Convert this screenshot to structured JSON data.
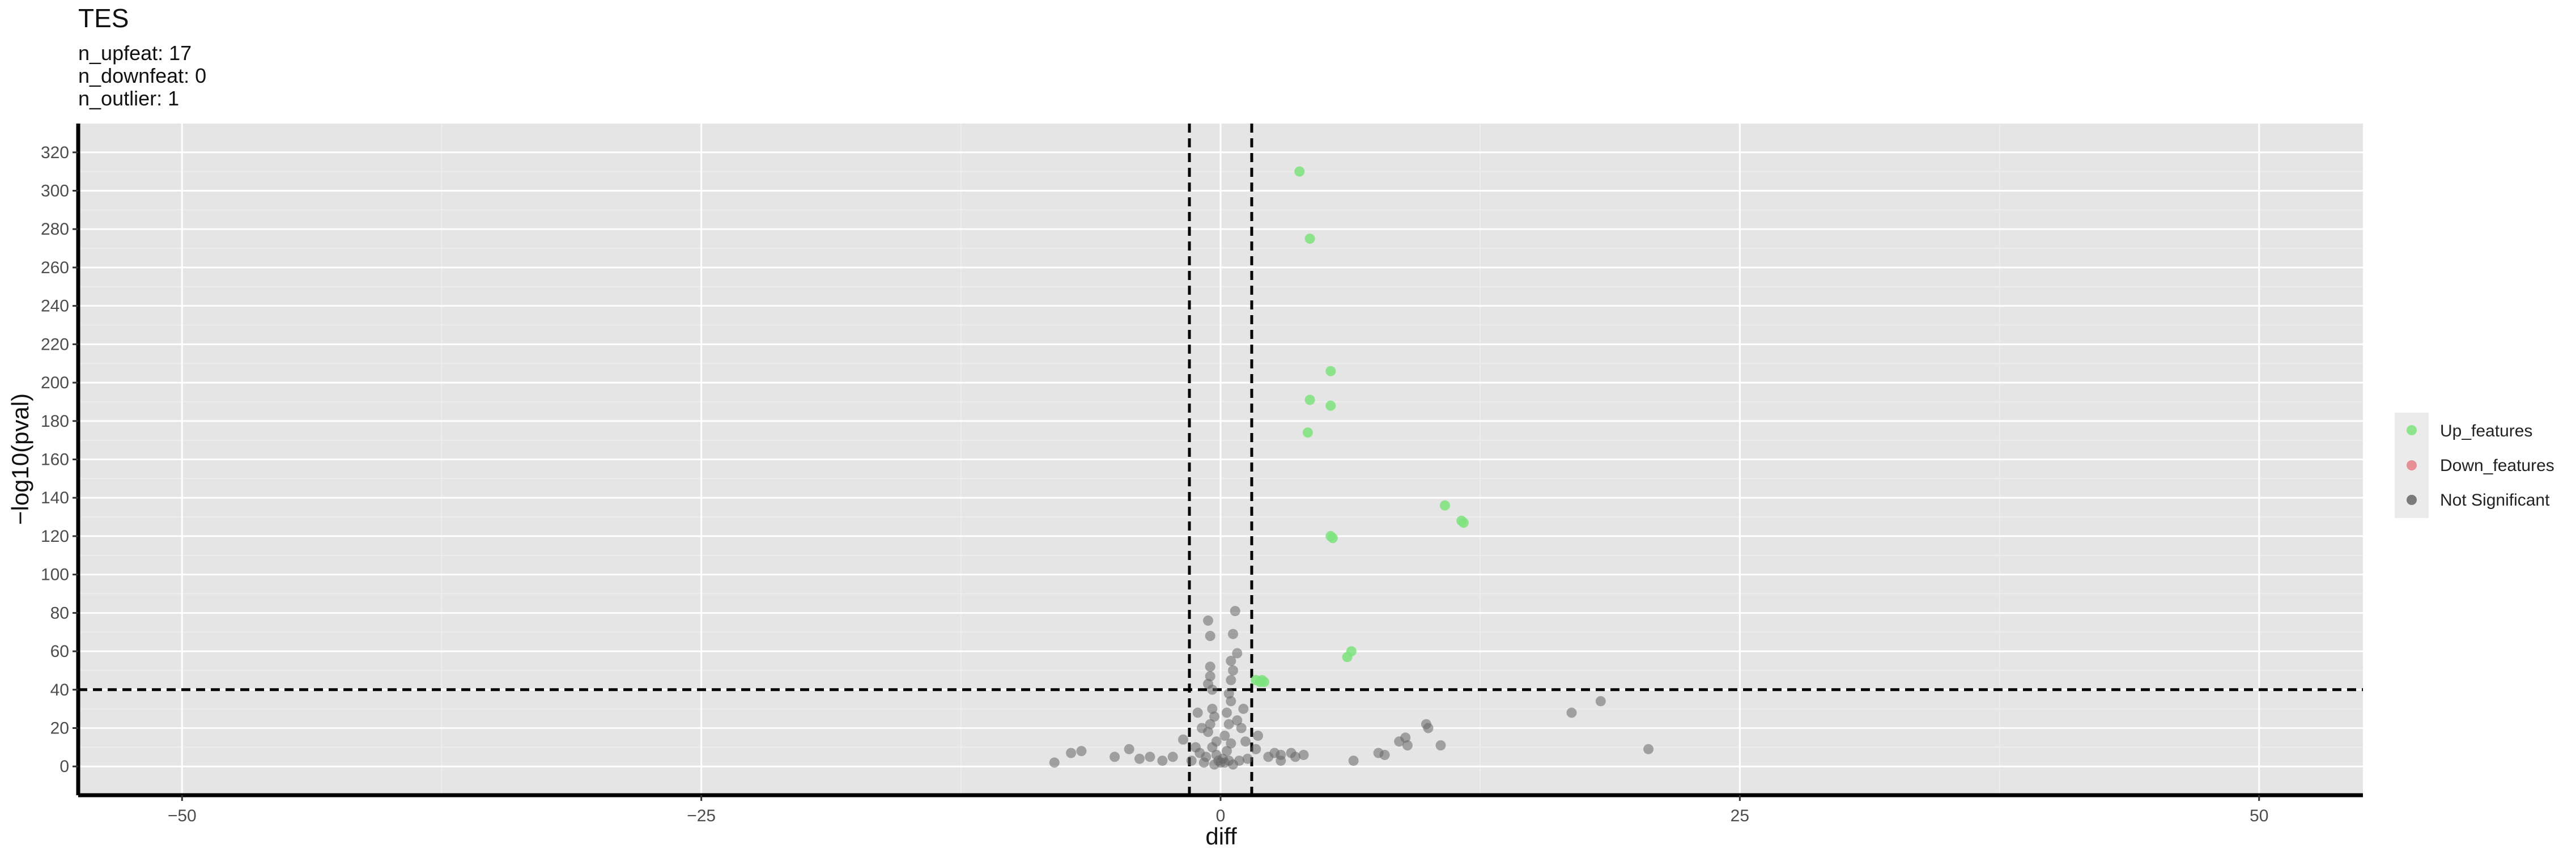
{
  "colors": {
    "panel": "#e5e5e5",
    "grid_major": "#ffffff",
    "grid_minor": "#ededed",
    "up": "#7ce37c",
    "down": "#e57f86",
    "ns": "#666666"
  },
  "chart_data": {
    "type": "scatter",
    "title": "TES",
    "subtitle_lines": [
      "n_upfeat: 17",
      "n_downfeat: 0",
      "n_outlier: 1"
    ],
    "xlabel": "diff",
    "ylabel": "−log10(pval)",
    "xlim": [
      -55,
      55
    ],
    "ylim": [
      -15,
      335
    ],
    "xticks": [
      -50,
      -25,
      0,
      25,
      50
    ],
    "xtick_labels": [
      "−50",
      "−25",
      "0",
      "25",
      "50"
    ],
    "yticks": [
      0,
      20,
      40,
      60,
      80,
      100,
      120,
      140,
      160,
      180,
      200,
      220,
      240,
      260,
      280,
      300,
      320
    ],
    "ytick_labels": [
      "0",
      "20",
      "40",
      "60",
      "80",
      "100",
      "120",
      "140",
      "160",
      "180",
      "200",
      "220",
      "240",
      "260",
      "280",
      "300",
      "320"
    ],
    "grid": true,
    "thresholds": {
      "x": [
        -1.5,
        1.5
      ],
      "y": [
        40
      ]
    },
    "legend": {
      "position": "right",
      "entries": [
        {
          "label": "Up_features",
          "color": "#7ce37c"
        },
        {
          "label": "Down_features",
          "color": "#e57f86"
        },
        {
          "label": "Not Significant",
          "color": "#666666"
        }
      ]
    },
    "series": [
      {
        "name": "Up_features",
        "color": "#7ce37c",
        "points": [
          [
            3.8,
            310
          ],
          [
            4.3,
            275
          ],
          [
            5.3,
            206
          ],
          [
            4.3,
            191
          ],
          [
            5.3,
            188
          ],
          [
            4.2,
            174
          ],
          [
            10.8,
            136
          ],
          [
            11.6,
            128
          ],
          [
            11.7,
            127
          ],
          [
            5.3,
            120
          ],
          [
            5.4,
            119
          ],
          [
            6.3,
            60
          ],
          [
            6.1,
            57
          ],
          [
            1.7,
            45
          ],
          [
            2.0,
            45
          ],
          [
            1.9,
            44
          ],
          [
            2.1,
            44
          ]
        ]
      },
      {
        "name": "Down_features",
        "color": "#e57f86",
        "points": []
      },
      {
        "name": "Not Significant",
        "color": "#666666",
        "points": [
          [
            -0.6,
            76
          ],
          [
            -0.5,
            68
          ],
          [
            0.7,
            81
          ],
          [
            0.6,
            69
          ],
          [
            0.8,
            59
          ],
          [
            0.5,
            55
          ],
          [
            0.6,
            50
          ],
          [
            -0.5,
            52
          ],
          [
            -0.5,
            47
          ],
          [
            -0.6,
            43
          ],
          [
            -0.4,
            40
          ],
          [
            0.5,
            45
          ],
          [
            0.4,
            38
          ],
          [
            0.5,
            34
          ],
          [
            -0.4,
            30
          ],
          [
            -0.3,
            26
          ],
          [
            -0.5,
            22
          ],
          [
            -0.6,
            18
          ],
          [
            0.3,
            28
          ],
          [
            0.4,
            22
          ],
          [
            0.2,
            16
          ],
          [
            -0.2,
            13
          ],
          [
            -0.4,
            10
          ],
          [
            0.5,
            12
          ],
          [
            0.3,
            8
          ],
          [
            -0.2,
            6
          ],
          [
            0.1,
            4
          ],
          [
            -0.1,
            3
          ],
          [
            0.2,
            2
          ],
          [
            0.4,
            3
          ],
          [
            -0.7,
            5
          ],
          [
            -1.0,
            7
          ],
          [
            -1.4,
            3
          ],
          [
            1.3,
            4
          ],
          [
            1.7,
            9
          ],
          [
            2.3,
            5
          ],
          [
            2.6,
            7
          ],
          [
            2.9,
            6
          ],
          [
            3.4,
            7
          ],
          [
            -0.3,
            1
          ],
          [
            0.0,
            2
          ],
          [
            0.6,
            1
          ],
          [
            -0.8,
            2
          ],
          [
            0.9,
            3
          ],
          [
            -1.2,
            10
          ],
          [
            1.2,
            13
          ],
          [
            -1.8,
            14
          ],
          [
            1.8,
            16
          ],
          [
            0.8,
            24
          ],
          [
            -0.9,
            20
          ],
          [
            1.0,
            20
          ],
          [
            -1.1,
            28
          ],
          [
            1.1,
            30
          ],
          [
            -2.3,
            5
          ],
          [
            -2.8,
            3
          ],
          [
            -3.4,
            5
          ],
          [
            -3.9,
            4
          ],
          [
            -4.4,
            9
          ],
          [
            -5.1,
            5
          ],
          [
            -7.2,
            7
          ],
          [
            -8.0,
            2
          ],
          [
            -6.7,
            8
          ],
          [
            2.9,
            3
          ],
          [
            3.6,
            5
          ],
          [
            4.0,
            6
          ],
          [
            6.4,
            3
          ],
          [
            7.6,
            7
          ],
          [
            7.9,
            6
          ],
          [
            8.6,
            13
          ],
          [
            8.9,
            15
          ],
          [
            9.0,
            11
          ],
          [
            9.9,
            22
          ],
          [
            10.0,
            20
          ],
          [
            10.6,
            11
          ],
          [
            16.9,
            28
          ],
          [
            18.3,
            34
          ],
          [
            20.6,
            9
          ]
        ]
      }
    ]
  }
}
